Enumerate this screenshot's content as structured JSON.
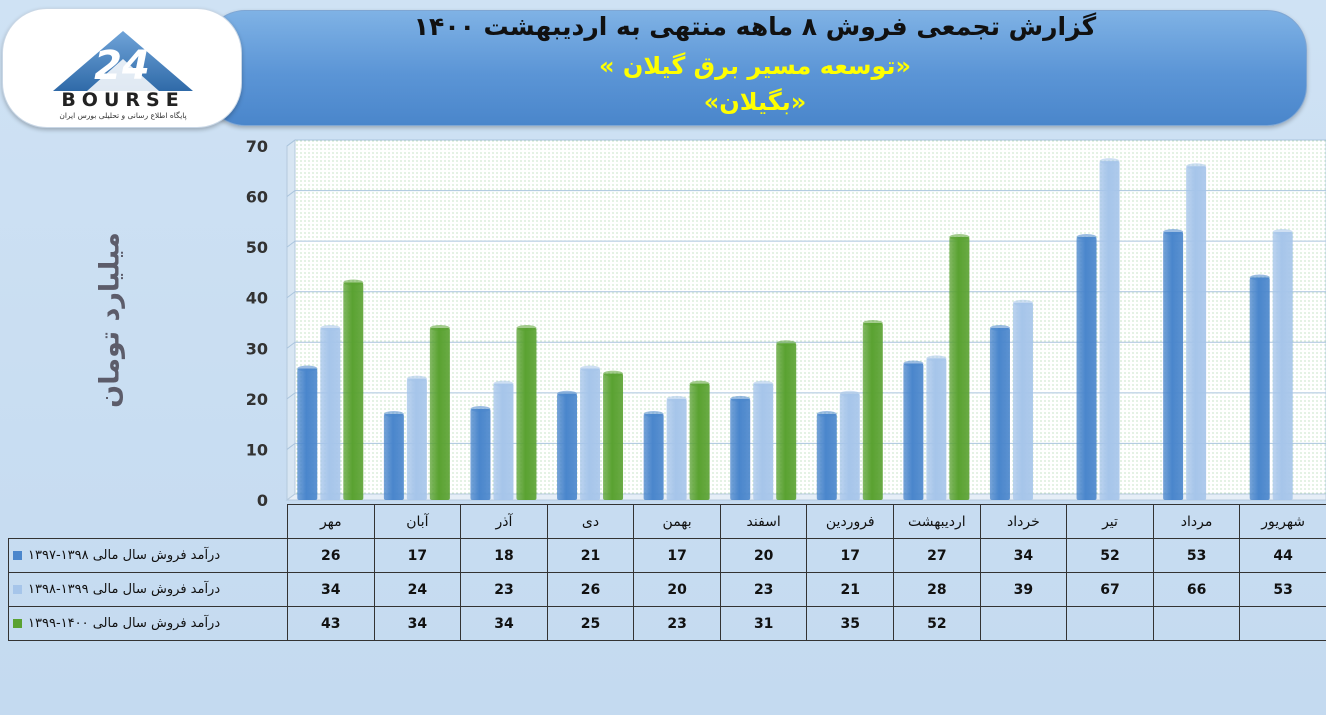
{
  "title": "گزارش تجمعی فروش ۸ ماهه منتهی به اردیبهشت ۱۴۰۰",
  "subtitle_company": "«توسعه مسیر برق گیلان »",
  "subtitle_symbol": "«بگیلان»",
  "logo": {
    "text": "BOURSE",
    "sub": "پایگاه اطلاع رسانی و تحلیلی بورس ایران"
  },
  "chart_data": {
    "type": "bar",
    "ylabel": "میلیارد تومان",
    "ylim": [
      0,
      70
    ],
    "yticks": [
      0,
      10,
      20,
      30,
      40,
      50,
      60,
      70
    ],
    "categories": [
      "مهر",
      "آبان",
      "آذر",
      "دی",
      "بهمن",
      "اسفند",
      "فروردین",
      "اردیبهشت",
      "خرداد",
      "تیر",
      "مرداد",
      "شهریور"
    ],
    "series": [
      {
        "name": "درآمد فروش سال مالی ۱۳۹۸-۱۳۹۷",
        "color": "#4a86cc",
        "values": [
          26,
          17,
          18,
          21,
          17,
          20,
          17,
          27,
          34,
          52,
          53,
          44
        ]
      },
      {
        "name": "درآمد فروش سال مالی ۱۳۹۹-۱۳۹۸",
        "color": "#a6c5ea",
        "values": [
          34,
          24,
          23,
          26,
          20,
          23,
          21,
          28,
          39,
          67,
          66,
          53
        ]
      },
      {
        "name": "درآمد فروش سال مالی ۱۴۰۰-۱۳۹۹",
        "color": "#5aa231",
        "values": [
          43,
          34,
          34,
          25,
          23,
          31,
          35,
          52,
          null,
          null,
          null,
          null
        ]
      }
    ],
    "grid": true,
    "legend": "table-below"
  }
}
